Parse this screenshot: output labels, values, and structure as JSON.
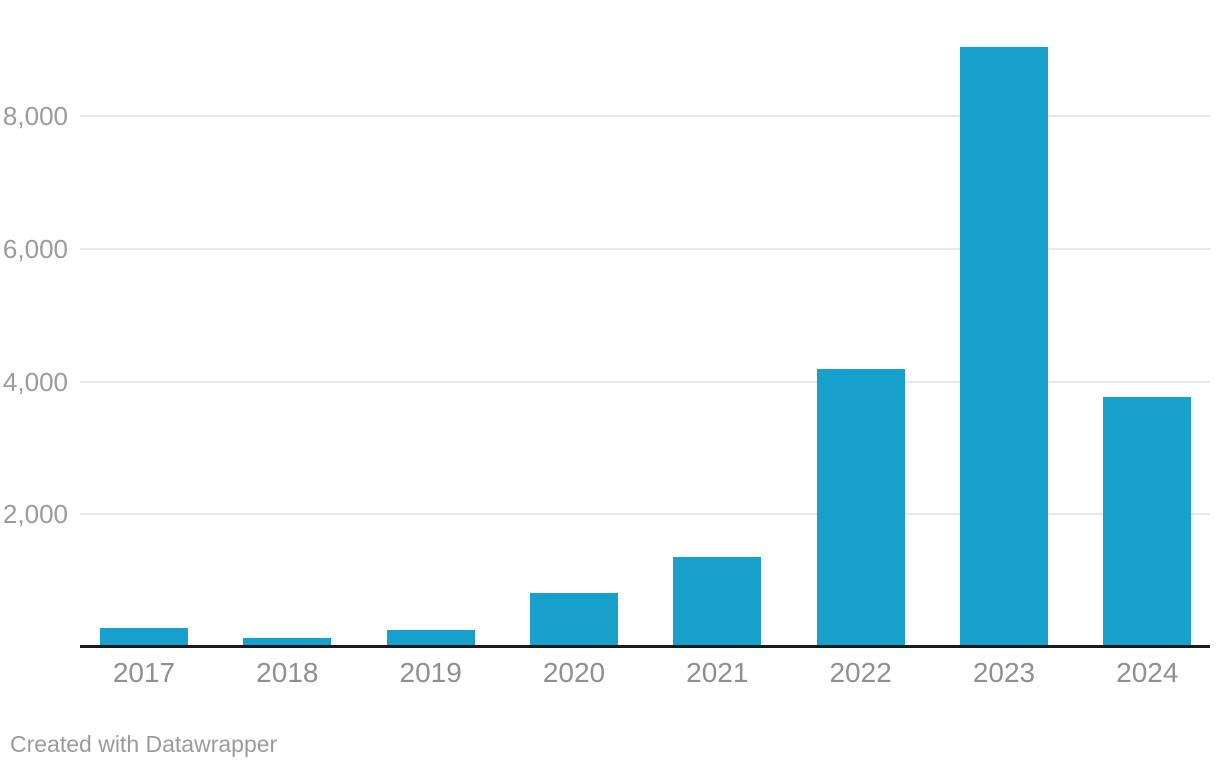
{
  "footer": {
    "attribution": "Created with Datawrapper"
  },
  "chart_data": {
    "type": "bar",
    "categories": [
      "2017",
      "2018",
      "2019",
      "2020",
      "2021",
      "2022",
      "2023",
      "2024"
    ],
    "values": [
      270,
      120,
      245,
      800,
      1340,
      4175,
      9030,
      3745
    ],
    "title": "",
    "xlabel": "",
    "ylabel": "",
    "ylim": [
      0,
      9640
    ],
    "y_ticks": [
      {
        "value": 2000,
        "label": "2,000"
      },
      {
        "value": 4000,
        "label": "4,000"
      },
      {
        "value": 6000,
        "label": "6,000"
      },
      {
        "value": 8000,
        "label": "8,000"
      }
    ],
    "grid": "horizontal-only",
    "legend": "none",
    "bar_color": "#18A0CC",
    "gridline_color": "#E8E8E8",
    "axis_line_color": "#1A1A1A",
    "y_tick_label_color": "#9B9B9B",
    "x_tick_label_color": "#8F8F8F"
  }
}
